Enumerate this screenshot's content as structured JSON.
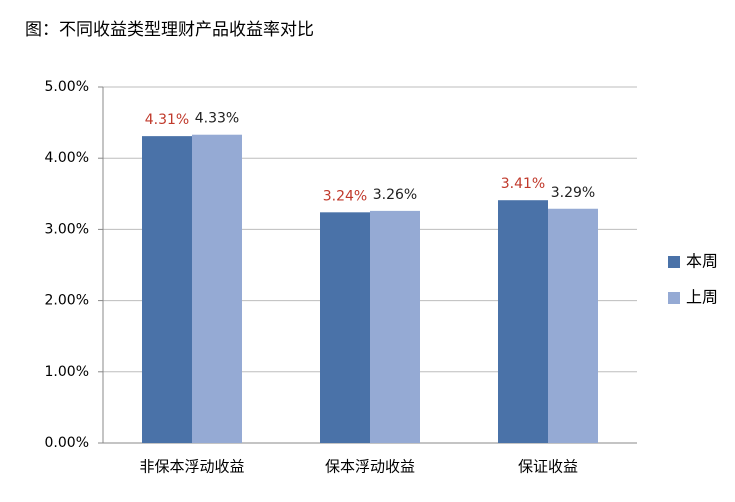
{
  "chart_data": {
    "type": "bar",
    "title": "图：不同收益类型理财产品收益率对比",
    "categories": [
      "非保本浮动收益",
      "保本浮动收益",
      "保证收益"
    ],
    "series": [
      {
        "name": "本周",
        "color": "#4a72a8",
        "label_color": "#c0392b",
        "values": [
          4.31,
          3.24,
          3.41
        ],
        "value_labels": [
          "4.31%",
          "3.24%",
          "3.41%"
        ]
      },
      {
        "name": "上周",
        "color": "#95aad4",
        "label_color": "#222222",
        "values": [
          4.33,
          3.26,
          3.29
        ],
        "value_labels": [
          "4.33%",
          "3.26%",
          "3.29%"
        ]
      }
    ],
    "ylim": [
      0,
      5
    ],
    "yticks": [
      {
        "value": 0,
        "label": "0.00%"
      },
      {
        "value": 1,
        "label": "1.00%"
      },
      {
        "value": 2,
        "label": "2.00%"
      },
      {
        "value": 3,
        "label": "3.00%"
      },
      {
        "value": 4,
        "label": "4.00%"
      },
      {
        "value": 5,
        "label": "5.00%"
      }
    ],
    "grid": true,
    "legend": "right"
  }
}
